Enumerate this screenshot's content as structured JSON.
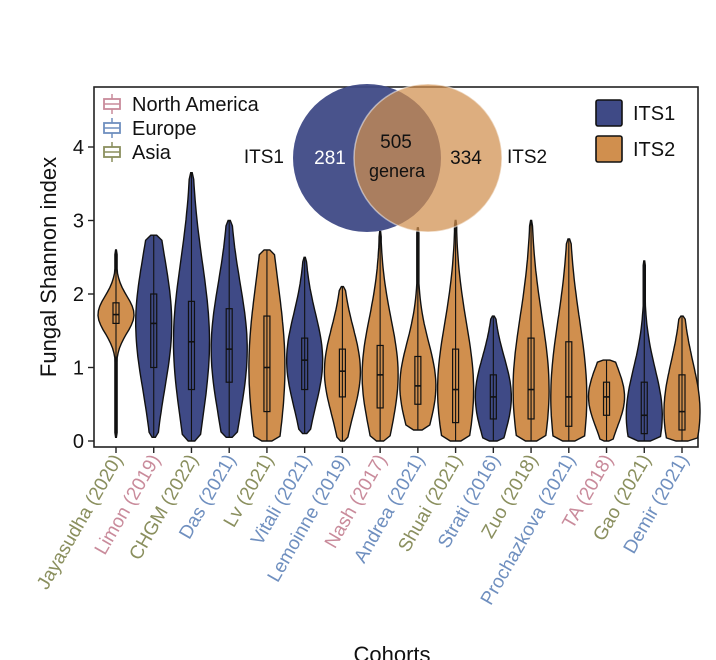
{
  "chart_data": {
    "type": "violin",
    "xlabel": "Cohorts",
    "ylabel": "Fungal Shannon index",
    "ylim": [
      0,
      4.8
    ],
    "yticks": [
      0,
      1,
      2,
      3,
      4
    ],
    "colors": {
      "ITS1": "#3f4a86",
      "ITS2": "#d08f4e",
      "North America": "#c98b9b",
      "Europe": "#6f8fbf",
      "Asia": "#8a8f5e"
    },
    "region_legend": [
      {
        "name": "North America",
        "color": "#c98b9b"
      },
      {
        "name": "Europe",
        "color": "#6f8fbf"
      },
      {
        "name": "Asia",
        "color": "#8a8f5e"
      }
    ],
    "marker_legend": [
      {
        "name": "ITS1",
        "color": "#3f4a86"
      },
      {
        "name": "ITS2",
        "color": "#d08f4e"
      }
    ],
    "venn": {
      "left_label": "ITS1",
      "right_label": "ITS2",
      "left_only": "281",
      "shared": "505",
      "shared_label": "genera",
      "right_only": "334"
    },
    "cohorts": [
      {
        "name": "Jayasudha (2020)",
        "region": "Asia",
        "marker": "ITS2",
        "min": 0.05,
        "max": 2.6,
        "q1": 1.6,
        "median": 1.72,
        "q3": 1.88
      },
      {
        "name": "Limon (2019)",
        "region": "North America",
        "marker": "ITS1",
        "min": 0.05,
        "max": 2.8,
        "q1": 1.0,
        "median": 1.6,
        "q3": 2.0
      },
      {
        "name": "CHGM (2022)",
        "region": "Asia",
        "marker": "ITS1",
        "min": 0.0,
        "max": 3.65,
        "q1": 0.7,
        "median": 1.35,
        "q3": 1.9
      },
      {
        "name": "Das (2021)",
        "region": "Europe",
        "marker": "ITS1",
        "min": 0.05,
        "max": 3.0,
        "q1": 0.8,
        "median": 1.25,
        "q3": 1.8
      },
      {
        "name": "Lv (2021)",
        "region": "Asia",
        "marker": "ITS2",
        "min": 0.0,
        "max": 2.6,
        "q1": 0.4,
        "median": 1.0,
        "q3": 1.7
      },
      {
        "name": "Vitali (2021)",
        "region": "Europe",
        "marker": "ITS1",
        "min": 0.1,
        "max": 2.5,
        "q1": 0.7,
        "median": 1.1,
        "q3": 1.4
      },
      {
        "name": "Lemoinne (2019)",
        "region": "Europe",
        "marker": "ITS2",
        "min": 0.0,
        "max": 2.1,
        "q1": 0.6,
        "median": 0.95,
        "q3": 1.25
      },
      {
        "name": "Nash (2017)",
        "region": "North America",
        "marker": "ITS2",
        "min": 0.0,
        "max": 2.85,
        "q1": 0.45,
        "median": 0.9,
        "q3": 1.3
      },
      {
        "name": "Andrea (2021)",
        "region": "Europe",
        "marker": "ITS2",
        "min": 0.15,
        "max": 2.9,
        "q1": 0.5,
        "median": 0.75,
        "q3": 1.15
      },
      {
        "name": "Shuai (2021)",
        "region": "Asia",
        "marker": "ITS2",
        "min": 0.0,
        "max": 3.0,
        "q1": 0.25,
        "median": 0.7,
        "q3": 1.25
      },
      {
        "name": "Strati (2016)",
        "region": "Europe",
        "marker": "ITS1",
        "min": 0.0,
        "max": 1.7,
        "q1": 0.3,
        "median": 0.6,
        "q3": 0.9
      },
      {
        "name": "Zuo (2018)",
        "region": "Asia",
        "marker": "ITS2",
        "min": 0.0,
        "max": 3.0,
        "q1": 0.3,
        "median": 0.7,
        "q3": 1.4
      },
      {
        "name": "Prochazkova (2021)",
        "region": "Europe",
        "marker": "ITS2",
        "min": 0.0,
        "max": 2.75,
        "q1": 0.2,
        "median": 0.6,
        "q3": 1.35
      },
      {
        "name": "TA (2018)",
        "region": "North America",
        "marker": "ITS2",
        "min": 0.0,
        "max": 1.1,
        "q1": 0.35,
        "median": 0.6,
        "q3": 0.8
      },
      {
        "name": "Gao (2021)",
        "region": "Asia",
        "marker": "ITS1",
        "min": 0.0,
        "max": 2.45,
        "q1": 0.1,
        "median": 0.35,
        "q3": 0.8
      },
      {
        "name": "Demir (2021)",
        "region": "Europe",
        "marker": "ITS2",
        "min": 0.0,
        "max": 1.7,
        "q1": 0.15,
        "median": 0.4,
        "q3": 0.9
      }
    ]
  }
}
